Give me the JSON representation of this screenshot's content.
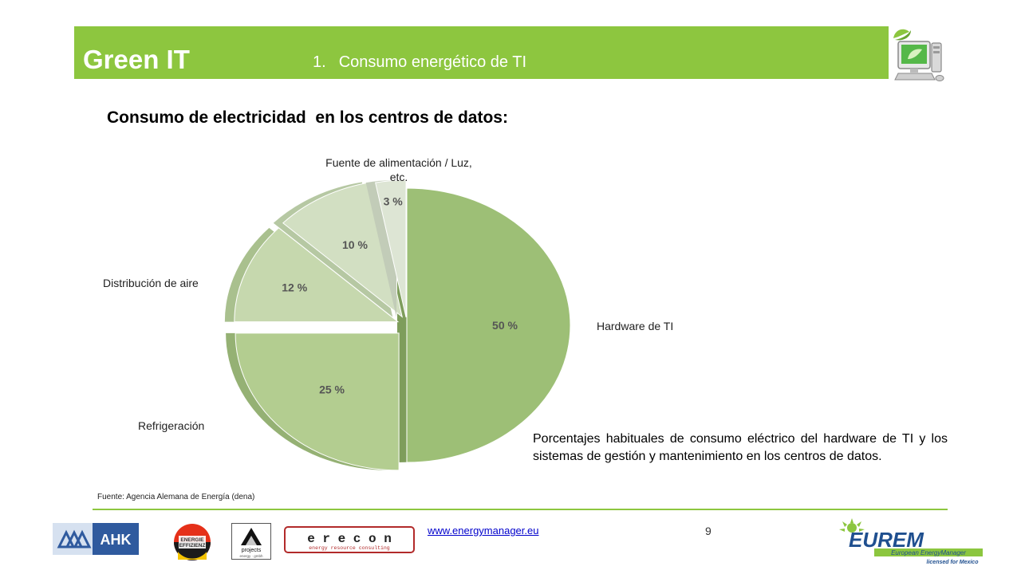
{
  "header": {
    "title": "Green IT",
    "section_number": "1.",
    "section_title": "Consumo energético de TI",
    "accent_color": "#8dc63f",
    "icon": "computer-monitor-icon"
  },
  "heading": "Consumo de electricidad  en los centros de datos:",
  "chart_data": {
    "type": "pie",
    "title": "",
    "slices": [
      {
        "label": "Hardware de TI",
        "value": 50,
        "value_label": "50 %",
        "color": "#9dbf76"
      },
      {
        "label": "Refrigeración",
        "value": 25,
        "value_label": "25 %",
        "color": "#b3cd90"
      },
      {
        "label": "Distribución de aire",
        "value": 12,
        "value_label": "12 %",
        "color": "#c6d8ae"
      },
      {
        "label": "",
        "value": 10,
        "value_label": "10 %",
        "color": "#d2dfc2"
      },
      {
        "label": "Fuente de alimentación / Luz, etc.",
        "value": 3,
        "value_label": "3 %",
        "color": "#dde5d4"
      }
    ]
  },
  "description": "Porcentajes habituales de consumo eléctrico del hardware de TI y los sistemas de gestión y mantenimiento en los centros de datos.",
  "source": "Fuente: Agencia Alemana de Energía (dena)",
  "footer": {
    "url": "www.energymanager.eu",
    "page_number": "9",
    "logos": {
      "ahk": "AHK",
      "energie": [
        "ENERGIE",
        "EFFIZIENZ"
      ],
      "projects": [
        "projects",
        "energy · gmbh"
      ],
      "erecon": [
        "e r e c o n",
        "energy resource consulting"
      ],
      "eurem": [
        "EUREM",
        "European EnergyManager",
        "licensed for Mexico"
      ]
    }
  }
}
